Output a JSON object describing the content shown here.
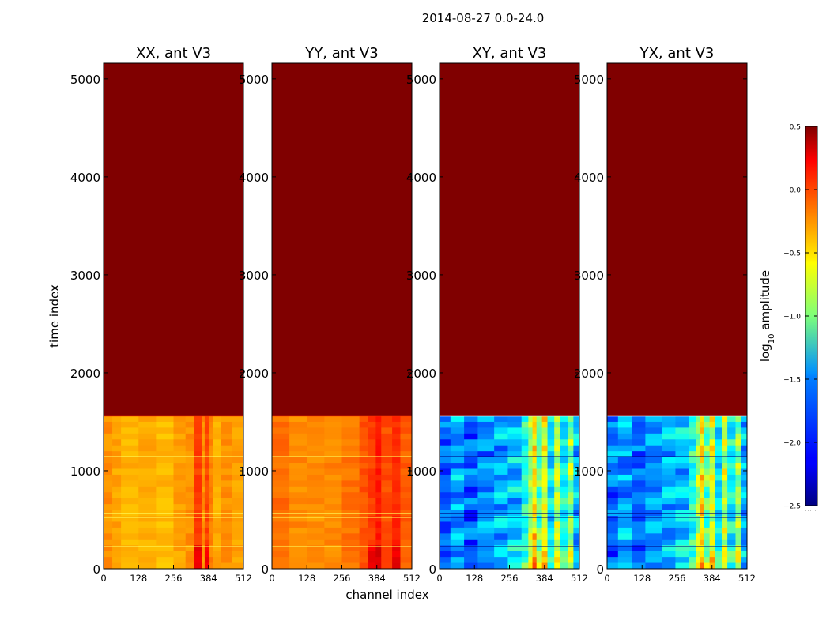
{
  "chart_data": {
    "type": "heatmap",
    "title": "2014-08-27 0.0-24.0",
    "xlabel": "channel index",
    "ylabel": "time index",
    "xlim": [
      0,
      512
    ],
    "ylim": [
      0,
      5160
    ],
    "x_ticks": [
      0,
      128,
      256,
      384,
      512
    ],
    "y_ticks": [
      0,
      1000,
      2000,
      3000,
      4000,
      5000
    ],
    "data_rows_top": 1560,
    "colormap": "jet",
    "colorbar": {
      "label": "log10 amplitude",
      "range": [
        -2.5,
        0.5
      ],
      "ticks": [
        0.5,
        0.0,
        -0.5,
        -1.0,
        -1.5,
        -2.0,
        -2.5
      ],
      "tick_labels": [
        "0.5",
        "0.0",
        "−0.5",
        "−1.0",
        "−1.5",
        "−2.0",
        "−2.5"
      ]
    },
    "panels": [
      {
        "title": "XX, ant V3",
        "fill_value": 0.5,
        "base_level": -0.35,
        "channel_profile": [
          {
            "from": 0,
            "to": 32,
            "level": -0.3
          },
          {
            "from": 32,
            "to": 64,
            "level": -0.36
          },
          {
            "from": 64,
            "to": 128,
            "level": -0.4
          },
          {
            "from": 128,
            "to": 192,
            "level": -0.38
          },
          {
            "from": 192,
            "to": 256,
            "level": -0.42
          },
          {
            "from": 256,
            "to": 300,
            "level": -0.35
          },
          {
            "from": 300,
            "to": 330,
            "level": -0.3
          },
          {
            "from": 330,
            "to": 360,
            "level": -0.05
          },
          {
            "from": 360,
            "to": 370,
            "level": -0.3
          },
          {
            "from": 370,
            "to": 385,
            "level": -0.08
          },
          {
            "from": 385,
            "to": 400,
            "level": -0.25
          },
          {
            "from": 400,
            "to": 430,
            "level": -0.38
          },
          {
            "from": 430,
            "to": 470,
            "level": -0.3
          },
          {
            "from": 470,
            "to": 512,
            "level": -0.35
          }
        ]
      },
      {
        "title": "YY, ant V3",
        "fill_value": 0.5,
        "base_level": -0.25,
        "channel_profile": [
          {
            "from": 0,
            "to": 64,
            "level": -0.2
          },
          {
            "from": 64,
            "to": 128,
            "level": -0.28
          },
          {
            "from": 128,
            "to": 192,
            "level": -0.3
          },
          {
            "from": 192,
            "to": 256,
            "level": -0.27
          },
          {
            "from": 256,
            "to": 320,
            "level": -0.22
          },
          {
            "from": 320,
            "to": 350,
            "level": -0.12
          },
          {
            "from": 350,
            "to": 380,
            "level": -0.05
          },
          {
            "from": 380,
            "to": 400,
            "level": 0.05
          },
          {
            "from": 400,
            "to": 440,
            "level": -0.1
          },
          {
            "from": 440,
            "to": 470,
            "level": 0.0
          },
          {
            "from": 470,
            "to": 512,
            "level": -0.15
          }
        ]
      },
      {
        "title": "XY, ant V3",
        "fill_value": 0.5,
        "base_level": -1.75,
        "channel_profile": [
          {
            "from": 0,
            "to": 40,
            "level": -1.8
          },
          {
            "from": 40,
            "to": 90,
            "level": -1.65
          },
          {
            "from": 90,
            "to": 140,
            "level": -1.85
          },
          {
            "from": 140,
            "to": 200,
            "level": -1.7
          },
          {
            "from": 200,
            "to": 250,
            "level": -1.6
          },
          {
            "from": 250,
            "to": 300,
            "level": -1.55
          },
          {
            "from": 300,
            "to": 325,
            "level": -1.3
          },
          {
            "from": 325,
            "to": 340,
            "level": -0.9
          },
          {
            "from": 340,
            "to": 355,
            "level": -0.55
          },
          {
            "from": 355,
            "to": 375,
            "level": -1.1
          },
          {
            "from": 375,
            "to": 395,
            "level": -0.7
          },
          {
            "from": 395,
            "to": 420,
            "level": -1.45
          },
          {
            "from": 420,
            "to": 440,
            "level": -0.8
          },
          {
            "from": 440,
            "to": 470,
            "level": -1.4
          },
          {
            "from": 470,
            "to": 490,
            "level": -0.95
          },
          {
            "from": 490,
            "to": 512,
            "level": -1.6
          }
        ]
      },
      {
        "title": "YX, ant V3",
        "fill_value": 0.5,
        "base_level": -1.75,
        "channel_profile": [
          {
            "from": 0,
            "to": 40,
            "level": -1.8
          },
          {
            "from": 40,
            "to": 90,
            "level": -1.65
          },
          {
            "from": 90,
            "to": 140,
            "level": -1.85
          },
          {
            "from": 140,
            "to": 200,
            "level": -1.7
          },
          {
            "from": 200,
            "to": 250,
            "level": -1.6
          },
          {
            "from": 250,
            "to": 300,
            "level": -1.55
          },
          {
            "from": 300,
            "to": 325,
            "level": -1.3
          },
          {
            "from": 325,
            "to": 340,
            "level": -0.9
          },
          {
            "from": 340,
            "to": 355,
            "level": -0.55
          },
          {
            "from": 355,
            "to": 375,
            "level": -1.1
          },
          {
            "from": 375,
            "to": 395,
            "level": -0.7
          },
          {
            "from": 395,
            "to": 420,
            "level": -1.45
          },
          {
            "from": 420,
            "to": 440,
            "level": -0.8
          },
          {
            "from": 440,
            "to": 470,
            "level": -1.4
          },
          {
            "from": 470,
            "to": 490,
            "level": -0.95
          },
          {
            "from": 490,
            "to": 512,
            "level": -1.6
          }
        ]
      }
    ]
  }
}
